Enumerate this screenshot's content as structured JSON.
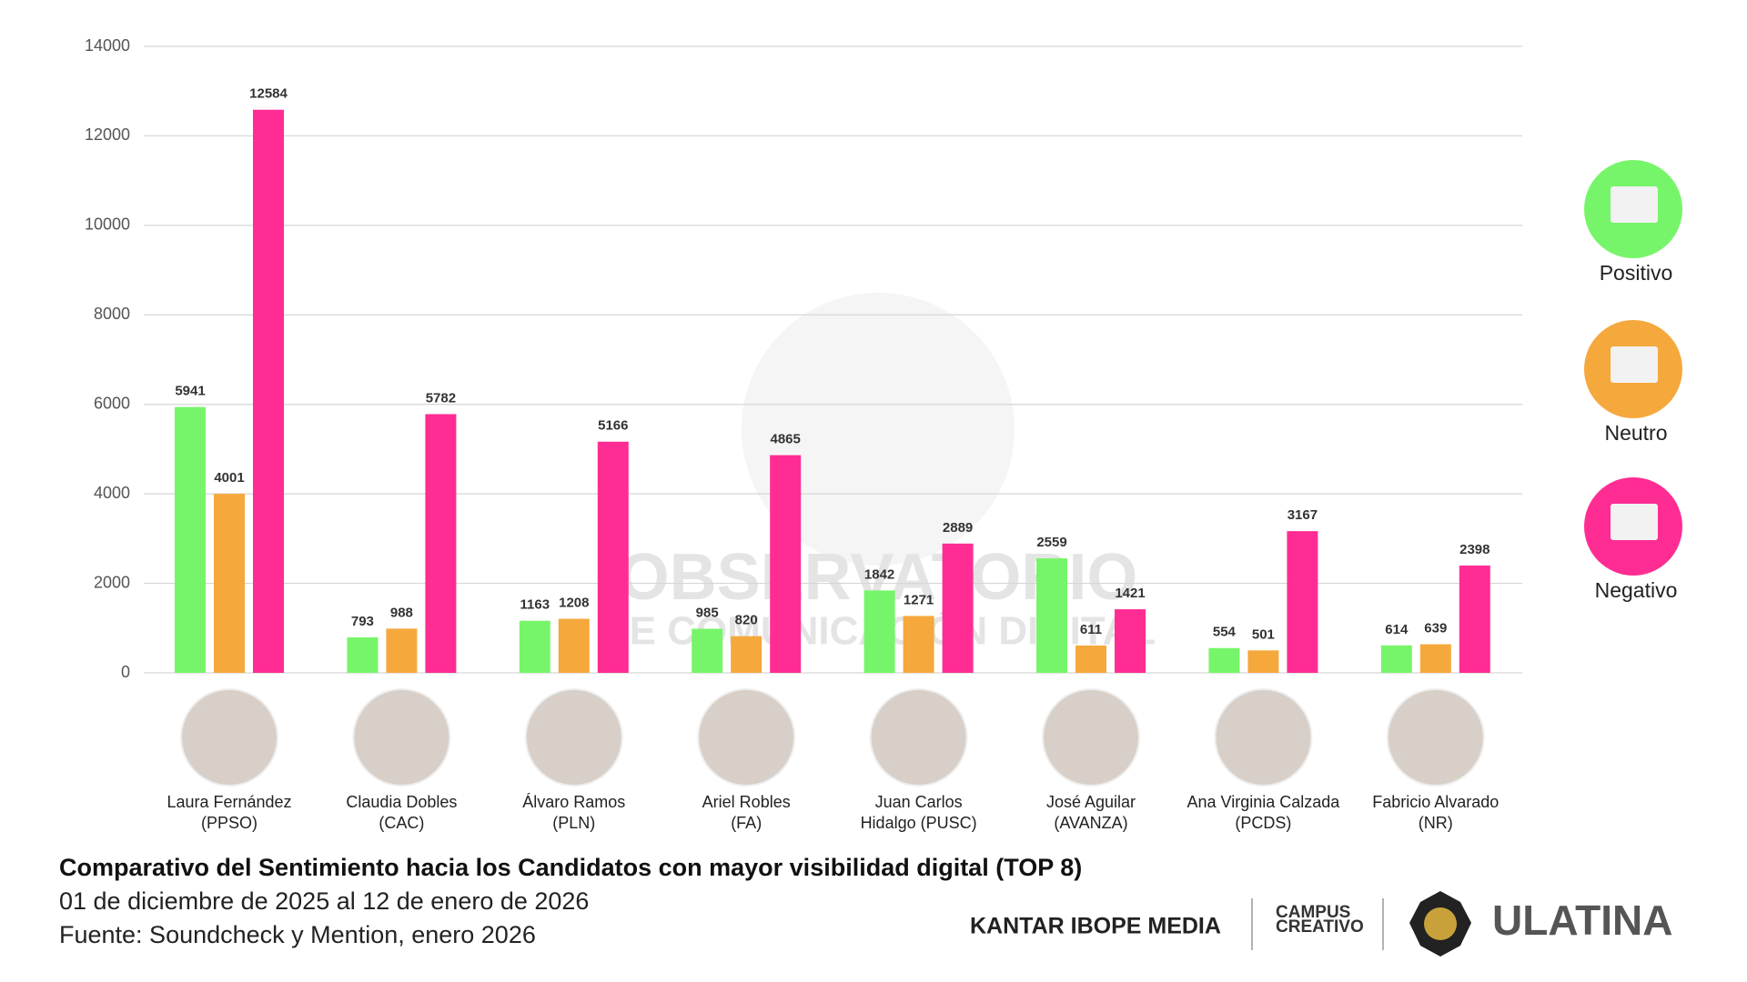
{
  "chart_data": {
    "type": "bar",
    "title": "Comparativo del Sentimiento hacia los Candidatos con mayor visibilidad digital (TOP 8)",
    "subtitle": [
      "01 de diciembre de 2025 al 12 de enero de 2026",
      "Fuente: Soundcheck y Mention, enero 2026"
    ],
    "categories": [
      [
        "Laura Fernández",
        "(PPSO)"
      ],
      [
        "Claudia Dobles",
        "(CAC)"
      ],
      [
        "Álvaro Ramos",
        "(PLN)"
      ],
      [
        "Ariel Robles",
        "(FA)"
      ],
      [
        "Juan Carlos",
        "Hidalgo (PUSC)"
      ],
      [
        "José Aguilar",
        "(AVANZA)"
      ],
      [
        "Ana Virginia Calzada",
        "(PCDS)"
      ],
      [
        "Fabricio Alvarado",
        "(NR)"
      ]
    ],
    "series": [
      {
        "name": "Positivo",
        "color": "#77f56a",
        "values": [
          5941,
          793,
          1163,
          985,
          1842,
          2559,
          554,
          614
        ]
      },
      {
        "name": "Neutro",
        "color": "#f5a83c",
        "values": [
          4001,
          988,
          1208,
          820,
          1271,
          611,
          501,
          639
        ]
      },
      {
        "name": "Negativo",
        "color": "#ff2d93",
        "values": [
          12584,
          5782,
          5166,
          4865,
          2889,
          1421,
          3167,
          2398
        ]
      }
    ],
    "ylim": [
      0,
      14000
    ],
    "yticks": [
      0,
      2000,
      4000,
      6000,
      8000,
      10000,
      12000,
      14000
    ],
    "grid": true,
    "legend": "right",
    "watermark": [
      "OBSERVATORIO",
      "DE COMUNICACIÓN DIGITAL"
    ]
  },
  "logos": [
    "KANTAR IBOPE MEDIA",
    "CAMPUS",
    "CREATIVO",
    "ULATINA"
  ]
}
